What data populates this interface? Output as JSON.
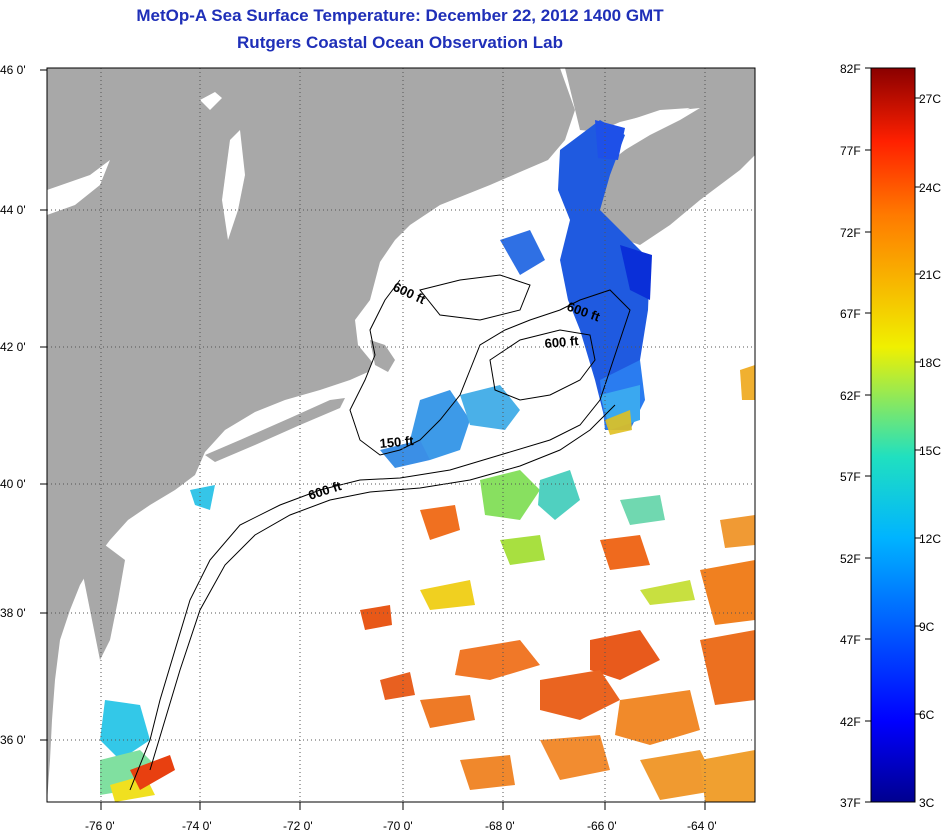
{
  "header": {
    "title": "MetOp-A Sea Surface Temperature:  December 22, 2012 1400 GMT",
    "subtitle": "Rutgers Coastal Ocean Observation Lab"
  },
  "axes": {
    "lon_ticks": [
      "-76 0'",
      "-74 0'",
      "-72 0'",
      "-70 0'",
      "-68 0'",
      "-66 0'",
      "-64 0'"
    ],
    "lat_ticks": [
      "46 0'",
      "44 0'",
      "42 0'",
      "40 0'",
      "38 0'",
      "36 0'"
    ],
    "lon_range": [
      -77,
      -62.9
    ],
    "lat_range": [
      35,
      46
    ]
  },
  "contours": {
    "labels": [
      "600 ft",
      "600 ft",
      "600 ft",
      "150 ft",
      "600 ft"
    ]
  },
  "colorbar": {
    "fahrenheit": [
      "82F",
      "77F",
      "72F",
      "67F",
      "62F",
      "57F",
      "52F",
      "47F",
      "42F",
      "37F"
    ],
    "celsius": [
      "27C",
      "24C",
      "21C",
      "18C",
      "15C",
      "12C",
      "9C",
      "6C",
      "3C"
    ]
  },
  "colors": {
    "land": "#a8a8a8",
    "title": "#1f2fb8",
    "cold": "#1e3fd6",
    "warm": "#e8651c"
  }
}
